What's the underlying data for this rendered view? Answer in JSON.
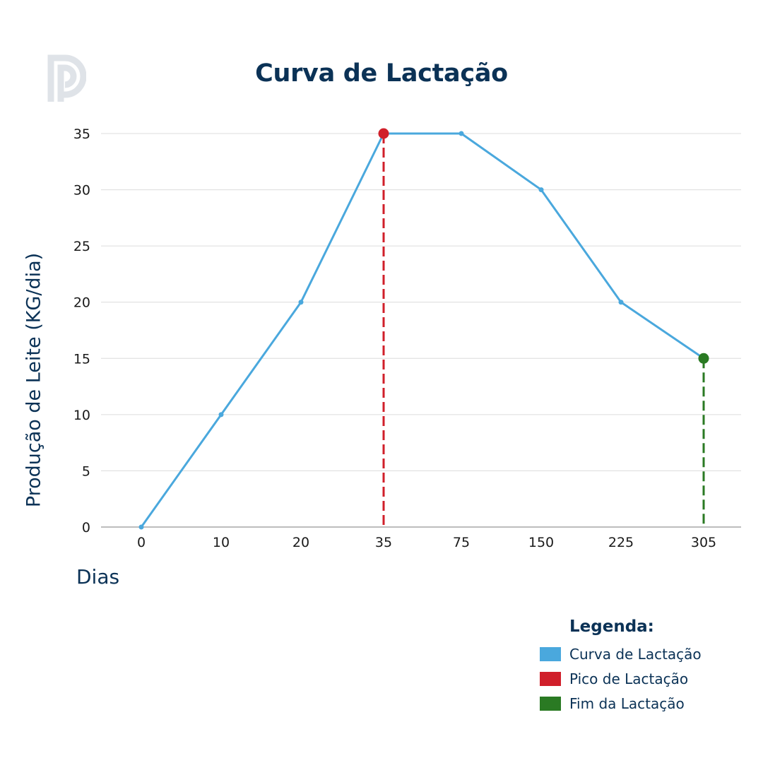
{
  "title": "Curva de Lactação",
  "logo": {
    "icon": "p-logo-icon",
    "color": "#dfe3e8"
  },
  "axes": {
    "ylabel": "Produção de Leite (KG/dia)",
    "xlabel": "Dias"
  },
  "legend": {
    "title": "Legenda:",
    "items": [
      {
        "label": "Curva de Lactação",
        "color": "#4aa8dd"
      },
      {
        "label": "Pico de Lactação",
        "color": "#d01f2a"
      },
      {
        "label": "Fim da Lactação",
        "color": "#2a7a23"
      }
    ]
  },
  "chart_data": {
    "type": "line",
    "title": "Curva de Lactação",
    "xlabel": "Dias",
    "ylabel": "Produção de Leite (KG/dia)",
    "categories": [
      "0",
      "10",
      "20",
      "35",
      "75",
      "150",
      "225",
      "305"
    ],
    "series": [
      {
        "name": "Curva de Lactação",
        "values": [
          0,
          10,
          20,
          35,
          35,
          30,
          20,
          15
        ],
        "color": "#4aa8dd"
      }
    ],
    "annotations": [
      {
        "name": "Pico de Lactação",
        "x": "35",
        "y": 35,
        "style": "dashed vertical line + marker",
        "color": "#d01f2a"
      },
      {
        "name": "Fim da Lactação",
        "x": "305",
        "y": 15,
        "style": "dashed vertical line + marker",
        "color": "#2a7a23"
      }
    ],
    "yticks": [
      0,
      5,
      10,
      15,
      20,
      25,
      30,
      35
    ],
    "ylim": [
      0,
      35
    ],
    "grid": true,
    "legend_position": "bottom-right"
  }
}
